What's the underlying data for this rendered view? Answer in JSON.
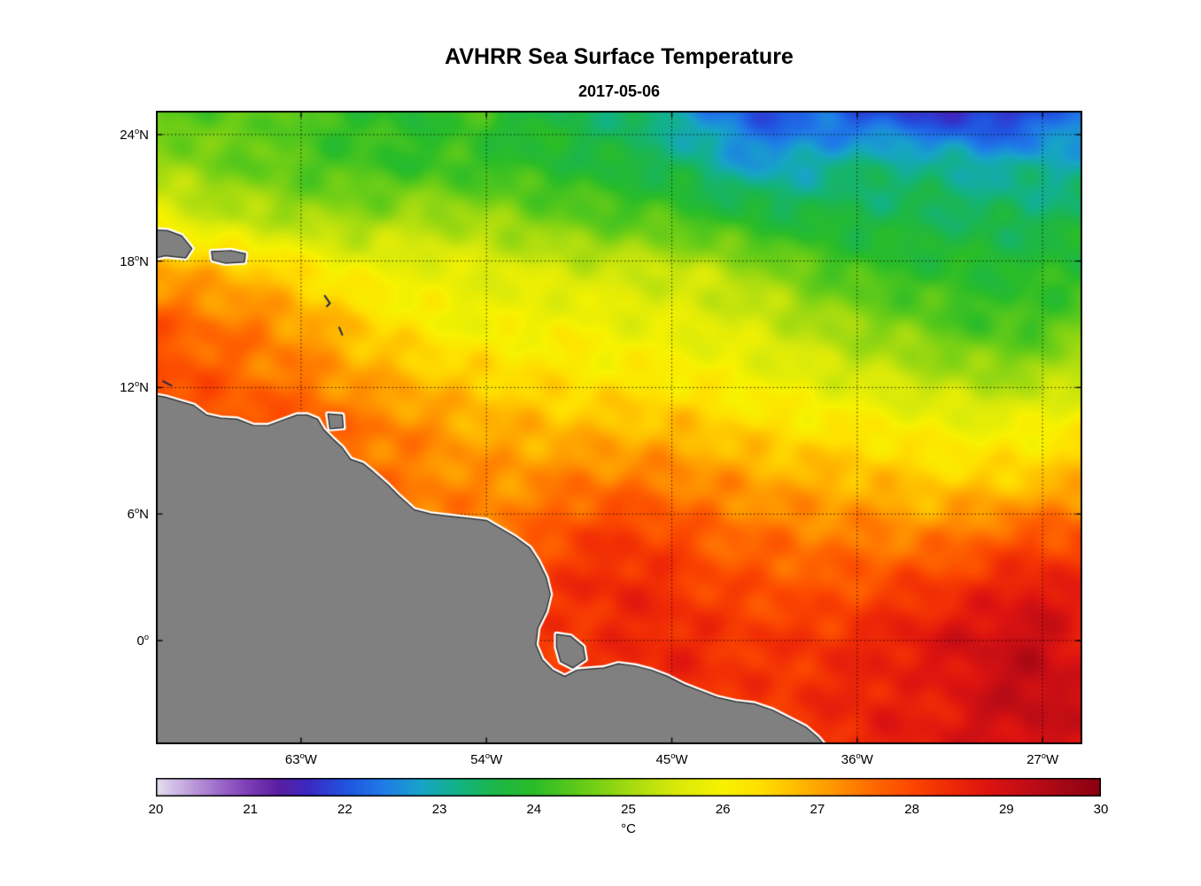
{
  "title": "AVHRR Sea Surface Temperature",
  "subtitle": "2017-05-06",
  "colorbar": {
    "min": 20,
    "max": 30,
    "tick_labels": [
      "20",
      "21",
      "22",
      "23",
      "24",
      "25",
      "26",
      "27",
      "28",
      "29",
      "30"
    ],
    "unit": "°C"
  },
  "axes": {
    "x_tick_labels": [
      {
        "num": "63",
        "suf": "W",
        "lon": -63
      },
      {
        "num": "54",
        "suf": "W",
        "lon": -54
      },
      {
        "num": "45",
        "suf": "W",
        "lon": -45
      },
      {
        "num": "36",
        "suf": "W",
        "lon": -36
      },
      {
        "num": "27",
        "suf": "W",
        "lon": -27
      }
    ],
    "y_tick_labels": [
      {
        "num": "24",
        "suf": "N",
        "lat": 24
      },
      {
        "num": "18",
        "suf": "N",
        "lat": 18
      },
      {
        "num": "12",
        "suf": "N",
        "lat": 12
      },
      {
        "num": "6",
        "suf": "N",
        "lat": 6
      },
      {
        "num": "0",
        "suf": "",
        "lat": 0
      }
    ],
    "lon_range": [
      -70.05,
      -25.07
    ],
    "lat_range": [
      -4.92,
      25.13
    ]
  },
  "chart_data": {
    "type": "heatmap",
    "title": "AVHRR Sea Surface Temperature",
    "date": "2017-05-06",
    "units": "°C",
    "value_range": [
      20,
      30
    ],
    "grid": true,
    "lon": [
      -70,
      -67.5,
      -65,
      -62.5,
      -60,
      -57.5,
      -55,
      -52.5,
      -50,
      -47.5,
      -45,
      -42.5,
      -40,
      -37.5,
      -35,
      -32.5,
      -30,
      -27.5,
      -25
    ],
    "lat": [
      25,
      22.5,
      20,
      17.5,
      15,
      12.5,
      10,
      7.5,
      5,
      2.5,
      0,
      -2.5,
      -5
    ],
    "sst": [
      [
        24.5,
        24.3,
        24.6,
        24.2,
        24.0,
        23.9,
        24.2,
        23.8,
        23.6,
        23.4,
        23.0,
        22.3,
        22.0,
        22.2,
        21.9,
        21.8,
        21.6,
        21.9,
        22.3
      ],
      [
        25.0,
        24.7,
        24.5,
        24.3,
        24.2,
        24.1,
        24.1,
        24.0,
        23.9,
        23.7,
        23.5,
        23.0,
        22.7,
        23.1,
        23.3,
        23.2,
        23.0,
        23.0,
        23.1
      ],
      [
        25.8,
        25.4,
        25.2,
        25.0,
        24.9,
        25.1,
        25.0,
        24.8,
        24.5,
        24.4,
        24.3,
        24.0,
        23.8,
        23.7,
        23.6,
        23.6,
        23.5,
        23.5,
        23.6
      ],
      [
        27.0,
        26.9,
        26.7,
        26.3,
        25.9,
        25.8,
        25.7,
        25.6,
        25.5,
        25.4,
        25.4,
        25.2,
        24.8,
        24.4,
        24.1,
        24.0,
        23.9,
        23.9,
        24.0
      ],
      [
        27.8,
        27.5,
        27.4,
        27.0,
        26.6,
        26.2,
        25.9,
        25.9,
        26.0,
        25.8,
        25.7,
        25.6,
        25.4,
        25.0,
        24.8,
        24.5,
        24.2,
        24.2,
        24.6
      ],
      [
        28.0,
        27.8,
        27.5,
        27.4,
        27.0,
        26.8,
        26.6,
        26.4,
        26.3,
        26.2,
        26.2,
        26.0,
        25.8,
        25.6,
        25.4,
        25.2,
        25.0,
        25.0,
        25.3
      ],
      [
        28.0,
        28.0,
        28.0,
        27.8,
        27.5,
        27.3,
        27.0,
        26.9,
        26.8,
        26.8,
        26.8,
        26.6,
        26.4,
        26.3,
        26.2,
        26.0,
        25.9,
        26.0,
        26.3
      ],
      [
        27.8,
        27.8,
        27.7,
        27.6,
        27.5,
        27.4,
        27.3,
        27.2,
        27.4,
        27.5,
        27.4,
        27.2,
        27.0,
        26.9,
        26.8,
        26.6,
        26.6,
        26.7,
        26.9
      ],
      [
        27.8,
        27.8,
        27.8,
        27.7,
        27.6,
        27.5,
        27.4,
        27.5,
        28.0,
        28.2,
        28.0,
        27.6,
        27.5,
        27.4,
        27.4,
        27.3,
        27.6,
        27.8,
        27.9
      ],
      [
        28.0,
        28.0,
        28.0,
        28.0,
        28.0,
        28.0,
        28.0,
        28.1,
        28.3,
        28.5,
        28.3,
        28.0,
        27.9,
        27.8,
        28.0,
        28.2,
        28.4,
        28.8,
        28.5
      ],
      [
        28.1,
        28.1,
        28.1,
        28.1,
        28.1,
        28.1,
        28.1,
        28.2,
        28.2,
        28.4,
        28.5,
        28.3,
        28.2,
        28.3,
        28.5,
        28.8,
        29.0,
        29.2,
        28.7
      ],
      [
        28.2,
        28.2,
        28.2,
        28.2,
        28.2,
        28.2,
        28.2,
        28.2,
        28.3,
        28.4,
        28.5,
        28.3,
        28.2,
        28.4,
        28.6,
        28.5,
        29.0,
        29.3,
        29.0
      ],
      [
        28.2,
        28.2,
        28.2,
        28.2,
        28.2,
        28.2,
        28.2,
        28.2,
        28.3,
        28.3,
        28.4,
        28.4,
        28.3,
        28.4,
        28.6,
        28.7,
        28.9,
        29.0,
        28.9
      ]
    ],
    "colormap_stops": [
      [
        20.0,
        "#e6def0"
      ],
      [
        20.35,
        "#c0a0dc"
      ],
      [
        20.7,
        "#9a64c8"
      ],
      [
        21.0,
        "#7a3ab4"
      ],
      [
        21.3,
        "#5a1ea0"
      ],
      [
        21.6,
        "#3c28c0"
      ],
      [
        22.0,
        "#2152e0"
      ],
      [
        22.4,
        "#1f7ae8"
      ],
      [
        22.8,
        "#17a4c8"
      ],
      [
        23.2,
        "#12b284"
      ],
      [
        23.6,
        "#1cb648"
      ],
      [
        24.0,
        "#2abc28"
      ],
      [
        24.5,
        "#63cb18"
      ],
      [
        25.0,
        "#a2da10"
      ],
      [
        25.5,
        "#d8e90a"
      ],
      [
        26.0,
        "#f7f200"
      ],
      [
        26.4,
        "#ffdf00"
      ],
      [
        26.8,
        "#ffba00"
      ],
      [
        27.2,
        "#ff9300"
      ],
      [
        27.6,
        "#ff6800"
      ],
      [
        28.0,
        "#fb4700"
      ],
      [
        28.4,
        "#ef2a06"
      ],
      [
        28.8,
        "#dd1410"
      ],
      [
        29.2,
        "#c20d15"
      ],
      [
        29.6,
        "#a40714"
      ],
      [
        30.0,
        "#8a0011"
      ]
    ],
    "land_color": "#808080",
    "coast_fringe_color": "#ffffff",
    "land_polygons": {
      "mainland": [
        [
          -70.5,
          11.7
        ],
        [
          -69.6,
          11.55
        ],
        [
          -68.9,
          11.35
        ],
        [
          -68.2,
          11.15
        ],
        [
          -67.6,
          10.7
        ],
        [
          -66.9,
          10.55
        ],
        [
          -66.1,
          10.5
        ],
        [
          -65.3,
          10.2
        ],
        [
          -64.6,
          10.2
        ],
        [
          -63.9,
          10.45
        ],
        [
          -63.2,
          10.7
        ],
        [
          -62.7,
          10.7
        ],
        [
          -62.2,
          10.5
        ],
        [
          -61.9,
          10.0
        ],
        [
          -61.5,
          9.6
        ],
        [
          -61.0,
          9.15
        ],
        [
          -60.6,
          8.6
        ],
        [
          -60.0,
          8.4
        ],
        [
          -59.5,
          8.0
        ],
        [
          -58.8,
          7.4
        ],
        [
          -58.3,
          6.9
        ],
        [
          -57.5,
          6.2
        ],
        [
          -56.7,
          6.0
        ],
        [
          -55.8,
          5.9
        ],
        [
          -54.9,
          5.8
        ],
        [
          -54.0,
          5.7
        ],
        [
          -53.3,
          5.3
        ],
        [
          -52.6,
          4.9
        ],
        [
          -51.9,
          4.4
        ],
        [
          -51.5,
          3.8
        ],
        [
          -51.1,
          3.0
        ],
        [
          -50.9,
          2.2
        ],
        [
          -51.1,
          1.4
        ],
        [
          -51.5,
          0.6
        ],
        [
          -51.6,
          -0.2
        ],
        [
          -51.3,
          -0.9
        ],
        [
          -50.8,
          -1.4
        ],
        [
          -50.2,
          -1.7
        ],
        [
          -49.6,
          -1.4
        ],
        [
          -49.0,
          -1.35
        ],
        [
          -48.3,
          -1.3
        ],
        [
          -47.6,
          -1.1
        ],
        [
          -46.8,
          -1.2
        ],
        [
          -46.0,
          -1.4
        ],
        [
          -45.2,
          -1.7
        ],
        [
          -44.4,
          -2.1
        ],
        [
          -43.6,
          -2.4
        ],
        [
          -42.8,
          -2.7
        ],
        [
          -41.9,
          -2.9
        ],
        [
          -41.0,
          -3.0
        ],
        [
          -40.1,
          -3.3
        ],
        [
          -39.3,
          -3.7
        ],
        [
          -38.5,
          -4.1
        ],
        [
          -37.9,
          -4.6
        ],
        [
          -37.3,
          -5.3
        ],
        [
          -70.5,
          -5.3
        ]
      ],
      "marajo": [
        [
          -50.6,
          0.3
        ],
        [
          -49.9,
          0.2
        ],
        [
          -49.3,
          -0.3
        ],
        [
          -49.2,
          -0.9
        ],
        [
          -49.8,
          -1.3
        ],
        [
          -50.4,
          -1.0
        ],
        [
          -50.6,
          -0.3
        ]
      ],
      "hispaniola": [
        [
          -70.5,
          19.5
        ],
        [
          -69.5,
          19.45
        ],
        [
          -68.8,
          19.2
        ],
        [
          -68.3,
          18.6
        ],
        [
          -68.6,
          18.15
        ],
        [
          -69.6,
          18.25
        ],
        [
          -70.5,
          18.05
        ]
      ],
      "puerto_rico": [
        [
          -67.35,
          18.45
        ],
        [
          -66.4,
          18.5
        ],
        [
          -65.7,
          18.35
        ],
        [
          -65.75,
          17.95
        ],
        [
          -66.7,
          17.9
        ],
        [
          -67.3,
          18.05
        ]
      ],
      "trinidad": [
        [
          -61.7,
          10.75
        ],
        [
          -61.0,
          10.7
        ],
        [
          -60.95,
          10.1
        ],
        [
          -61.6,
          10.05
        ]
      ]
    },
    "island_marks": [
      [
        [
          -61.85,
          16.35
        ],
        [
          -61.6,
          16.0
        ],
        [
          -61.75,
          15.85
        ]
      ],
      [
        [
          -61.15,
          14.85
        ],
        [
          -61.0,
          14.5
        ]
      ],
      [
        [
          -69.7,
          12.3
        ],
        [
          -69.3,
          12.1
        ]
      ]
    ]
  }
}
